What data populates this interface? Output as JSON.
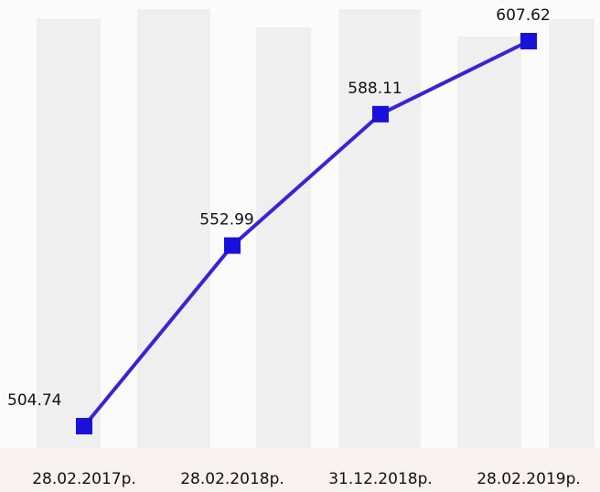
{
  "chart_data": {
    "type": "line",
    "categories": [
      "28.02.2017р.",
      "28.02.2018р.",
      "31.12.2018р.",
      "28.02.2019р."
    ],
    "values": [
      504.74,
      552.99,
      588.11,
      607.62
    ],
    "color": "#3a22d8"
  }
}
